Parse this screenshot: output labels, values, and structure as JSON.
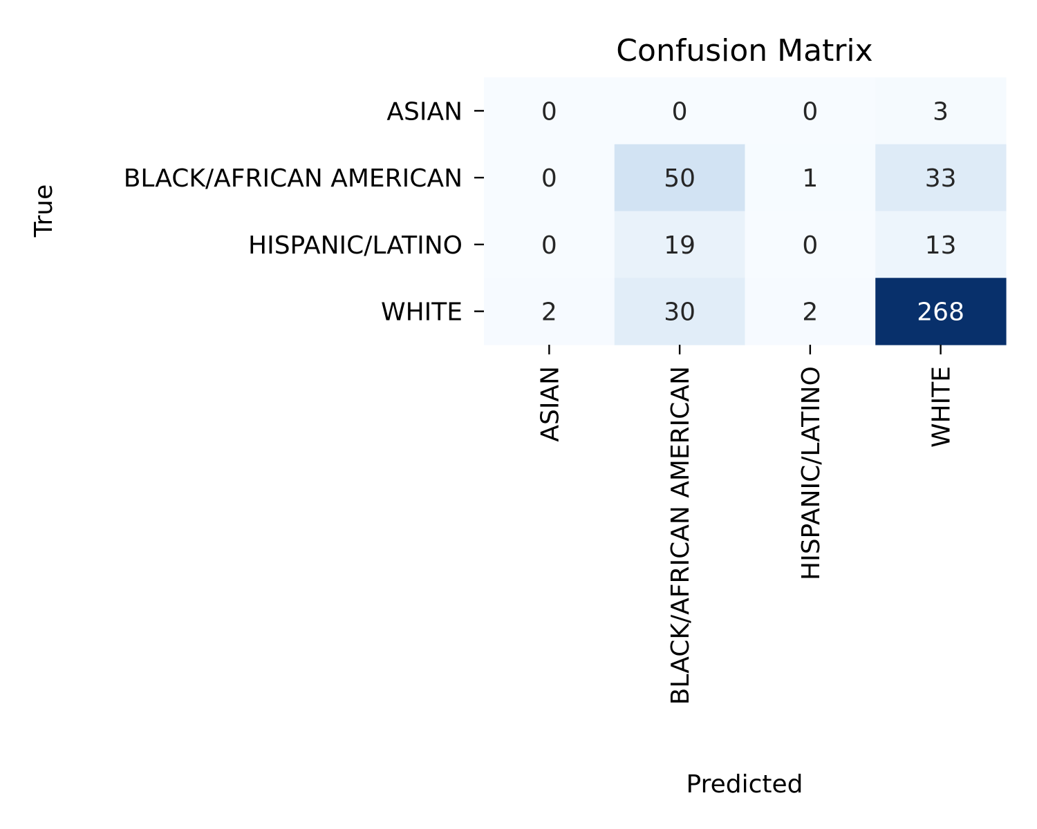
{
  "chart_data": {
    "type": "heatmap",
    "title": "Confusion Matrix",
    "xlabel": "Predicted",
    "ylabel": "True",
    "x_categories": [
      "ASIAN",
      "BLACK/AFRICAN AMERICAN",
      "HISPANIC/LATINO",
      "WHITE"
    ],
    "y_categories": [
      "ASIAN",
      "BLACK/AFRICAN AMERICAN",
      "HISPANIC/LATINO",
      "WHITE"
    ],
    "values": [
      [
        0,
        0,
        0,
        3
      ],
      [
        0,
        50,
        1,
        33
      ],
      [
        0,
        19,
        0,
        13
      ],
      [
        2,
        30,
        2,
        268
      ]
    ],
    "value_range": [
      0,
      268
    ],
    "colormap": "Blues",
    "colorbar": false,
    "grid": false
  }
}
